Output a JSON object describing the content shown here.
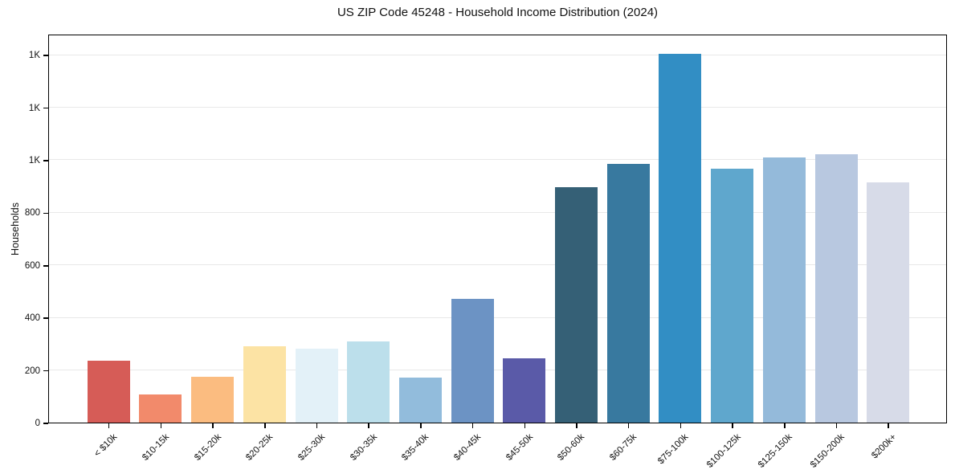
{
  "chart_data": {
    "type": "bar",
    "title": "US ZIP Code 45248 - Household Income Distribution (2024)",
    "xlabel": "",
    "ylabel": "Households",
    "categories": [
      "< $10k",
      "$10-15k",
      "$15-20k",
      "$20-25k",
      "$25-30k",
      "$30-35k",
      "$35-40k",
      "$40-45k",
      "$45-50k",
      "$50-60k",
      "$60-75k",
      "$75-100k",
      "$100-125k",
      "$125-150k",
      "$150-200k",
      "$200k+"
    ],
    "values": [
      235,
      108,
      175,
      290,
      280,
      310,
      170,
      470,
      245,
      895,
      985,
      1405,
      965,
      1010,
      1020,
      915
    ],
    "bar_colors": [
      "#d65c57",
      "#f28a6b",
      "#fbbc80",
      "#fce3a4",
      "#e3f1f8",
      "#bcdfeb",
      "#92bcdc",
      "#6c93c4",
      "#5a5aa8",
      "#356076",
      "#38799f",
      "#328ec4",
      "#5fa7cd",
      "#94bada",
      "#b8c8e0",
      "#d7dbe8"
    ],
    "ylim": [
      0,
      1480
    ],
    "yticks": [
      0,
      200,
      400,
      600,
      800,
      1000,
      1200,
      1400
    ],
    "ytick_labels": [
      "0",
      "200",
      "400",
      "600",
      "800",
      "1K",
      "1K",
      "1K"
    ],
    "grid": "horizontal",
    "gridline_color": "#e8e8e8",
    "spine_color": "#000000",
    "legend": "none",
    "xtick_rotation": 45
  }
}
